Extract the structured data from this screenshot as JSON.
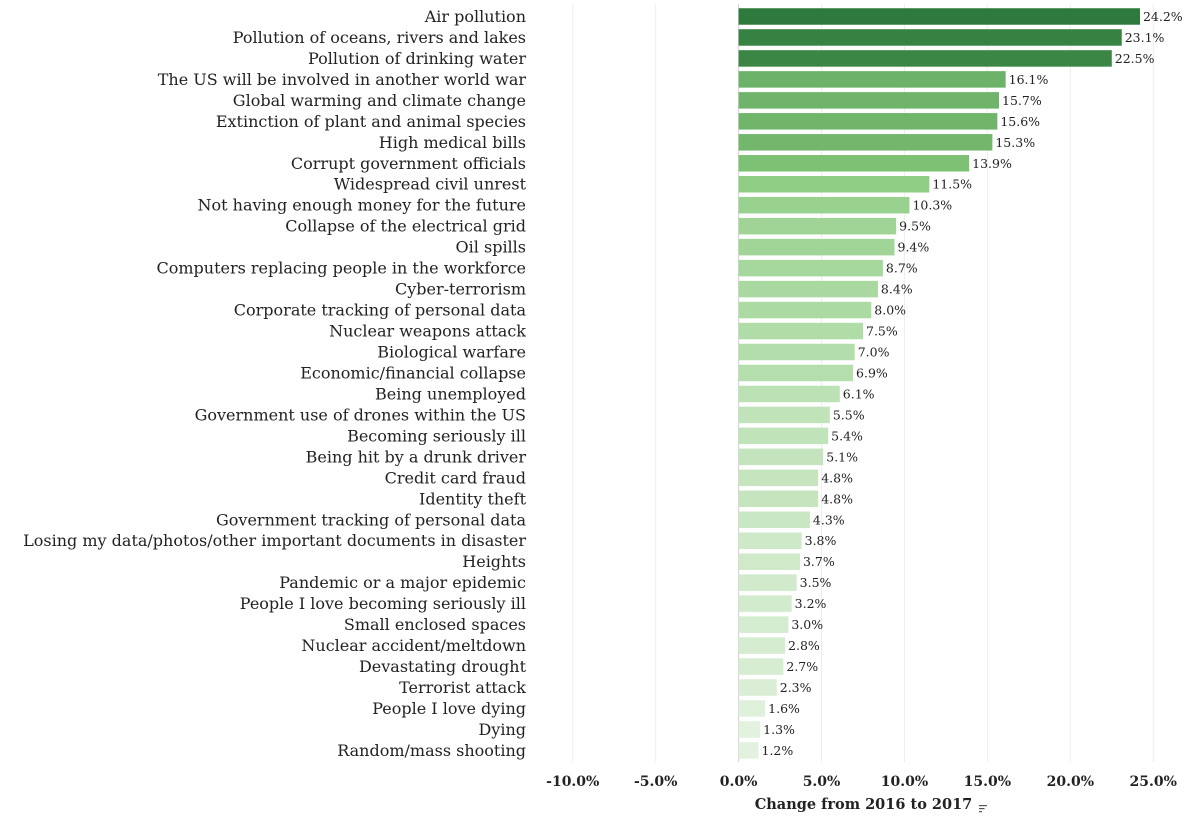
{
  "chart_data": {
    "type": "bar",
    "orientation": "horizontal",
    "xlabel": "Change from 2016 to 2017",
    "xlim": [
      -13.0,
      28.0
    ],
    "xticks": [
      -10,
      -5,
      0,
      5,
      10,
      15,
      20,
      25
    ],
    "xtick_labels": [
      "-10.0%",
      "-5.0%",
      "0.0%",
      "5.0%",
      "10.0%",
      "15.0%",
      "20.0%",
      "25.0%"
    ],
    "grid": true,
    "color_scale": {
      "low": "#e3f2df",
      "mid": "#86c97a",
      "high": "#2e7a3c"
    },
    "categories": [
      "Air pollution",
      "Pollution of oceans, rivers and lakes",
      "Pollution of drinking water",
      "The US will be involved in another world war",
      "Global warming and climate change",
      "Extinction of plant and animal species",
      "High medical bills",
      "Corrupt government officials",
      "Widespread civil unrest",
      "Not having enough money for the future",
      "Collapse of the electrical grid",
      "Oil spills",
      "Computers replacing people in the workforce",
      "Cyber-terrorism",
      "Corporate tracking of personal data",
      "Nuclear weapons attack",
      "Biological warfare",
      "Economic/financial collapse",
      "Being unemployed",
      "Government use of drones within the US",
      "Becoming seriously ill",
      "Being hit by a drunk driver",
      "Credit card fraud",
      "Identity theft",
      "Government tracking of personal data",
      "Losing my data/photos/other important documents in disaster",
      "Heights",
      "Pandemic or a major epidemic",
      "People I love becoming seriously ill",
      "Small enclosed spaces",
      "Nuclear accident/meltdown",
      "Devastating drought",
      "Terrorist attack",
      "People I love dying",
      "Dying",
      "Random/mass shooting"
    ],
    "values": [
      24.2,
      23.1,
      22.5,
      16.1,
      15.7,
      15.6,
      15.3,
      13.9,
      11.5,
      10.3,
      9.5,
      9.4,
      8.7,
      8.4,
      8.0,
      7.5,
      7.0,
      6.9,
      6.1,
      5.5,
      5.4,
      5.1,
      4.8,
      4.8,
      4.3,
      3.8,
      3.7,
      3.5,
      3.2,
      3.0,
      2.8,
      2.7,
      2.3,
      1.6,
      1.3,
      1.2
    ],
    "value_labels": [
      "24.2%",
      "23.1%",
      "22.5%",
      "16.1%",
      "15.7%",
      "15.6%",
      "15.3%",
      "13.9%",
      "11.5%",
      "10.3%",
      "9.5%",
      "9.4%",
      "8.7%",
      "8.4%",
      "8.0%",
      "7.5%",
      "7.0%",
      "6.9%",
      "6.1%",
      "5.5%",
      "5.4%",
      "5.1%",
      "4.8%",
      "4.8%",
      "4.3%",
      "3.8%",
      "3.7%",
      "3.5%",
      "3.2%",
      "3.0%",
      "2.8%",
      "2.7%",
      "2.3%",
      "1.6%",
      "1.3%",
      "1.2%"
    ]
  },
  "controls": {
    "sort_icon": "sort-descending-icon"
  }
}
